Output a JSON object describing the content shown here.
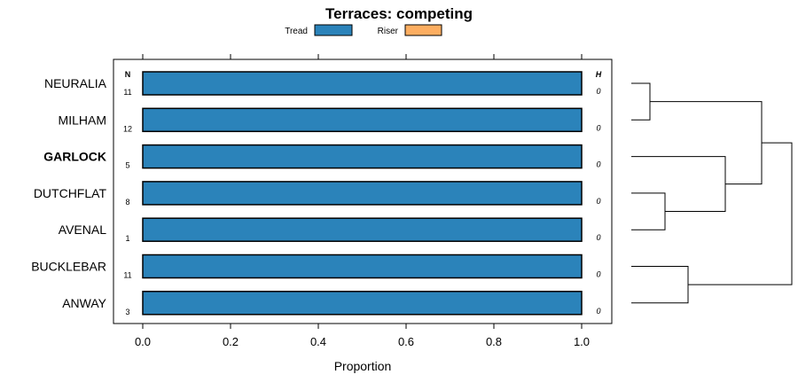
{
  "chart_data": {
    "type": "bar",
    "orientation": "horizontal",
    "stacked": true,
    "title": "Terraces: competing",
    "xlabel": "Proportion",
    "xlim": [
      0,
      1
    ],
    "xticks": [
      "0.0",
      "0.2",
      "0.4",
      "0.6",
      "0.8",
      "1.0"
    ],
    "xtick_values": [
      0,
      0.2,
      0.4,
      0.6,
      0.8,
      1.0
    ],
    "legend_position": "top-center",
    "n_header": "N",
    "h_header": "H",
    "highlighted_category": "GARLOCK",
    "categories": [
      "NEURALIA",
      "MILHAM",
      "GARLOCK",
      "DUTCHFLAT",
      "AVENAL",
      "BUCKLEBAR",
      "ANWAY"
    ],
    "n_values": [
      "11",
      "12",
      "5",
      "8",
      "1",
      "11",
      "3"
    ],
    "h_values": [
      "0",
      "0",
      "0",
      "0",
      "0",
      "0",
      "0"
    ],
    "series": [
      {
        "name": "Tread",
        "color": "#2b83ba",
        "values": [
          1,
          1,
          1,
          1,
          1,
          1,
          1
        ]
      },
      {
        "name": "Riser",
        "color": "#fdae61",
        "values": [
          0,
          0,
          0,
          0,
          0,
          0,
          0
        ]
      }
    ],
    "dendrogram": {
      "merges": [
        {
          "left": "NEURALIA",
          "right": "MILHAM"
        },
        {
          "left": "DUTCHFLAT",
          "right": "AVENAL"
        },
        {
          "left": "BUCKLEBAR",
          "right": "ANWAY"
        },
        {
          "left": "GARLOCK",
          "right": "DUTCHFLAT+AVENAL"
        },
        {
          "left": "NEURALIA+MILHAM",
          "right": "GARLOCK+DUTCHFLAT+AVENAL"
        },
        {
          "left": "NEURALIA+MILHAM+GARLOCK+DUTCHFLAT+AVENAL",
          "right": "BUCKLEBAR+ANWAY"
        }
      ]
    }
  }
}
